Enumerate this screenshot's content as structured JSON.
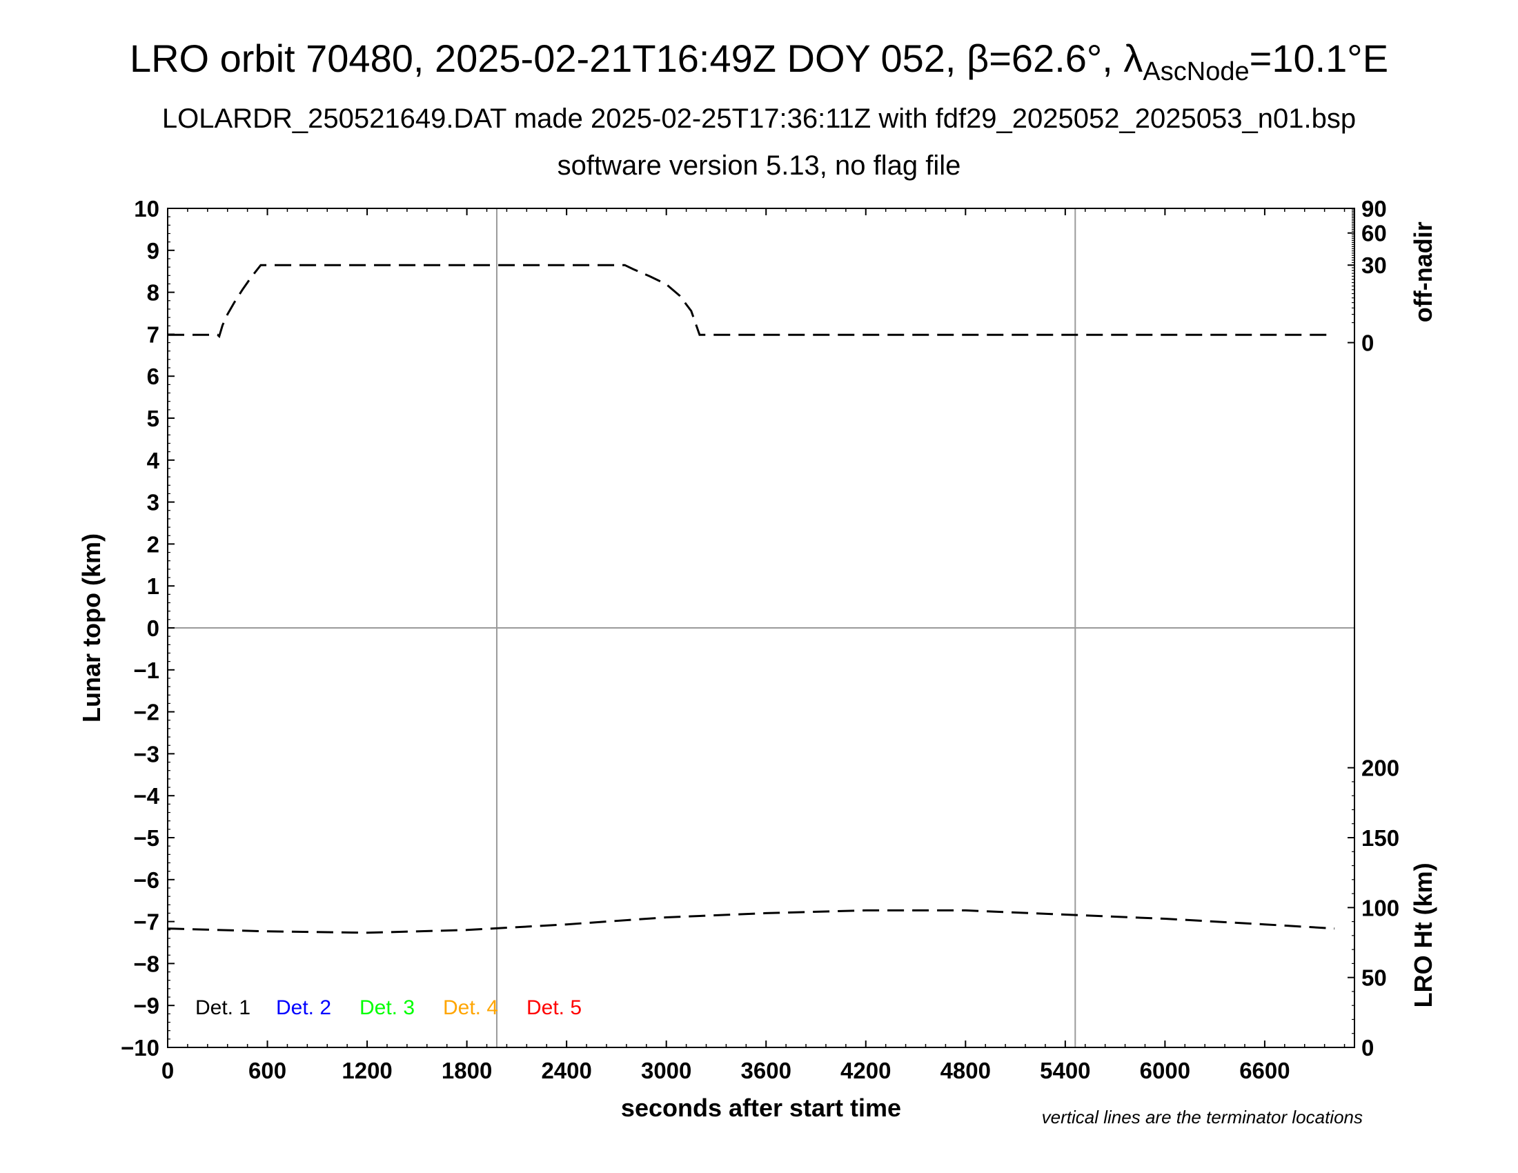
{
  "title": {
    "main": "LRO orbit 70480, 2025-02-21T16:49Z DOY 052, β=62.6°, λ",
    "sub": "AscNode",
    "tail": "=10.1°E"
  },
  "subtitle1": "LOLARDR_250521649.DAT made 2025-02-25T17:36:11Z with fdf29_2025052_2025053_n01.bsp",
  "subtitle2": "software version 5.13, no flag file",
  "note": "vertical lines are the terminator locations",
  "chart_data": {
    "type": "line",
    "xlabel": "seconds after start time",
    "ylabel_left": "Lunar topo (km)",
    "ylabel_right_top": "off-nadir",
    "ylabel_right_bottom": "LRO Ht (km)",
    "xlim": [
      0,
      7140
    ],
    "ylim_left": [
      -10,
      10
    ],
    "x_ticks": [
      "0",
      "600",
      "1200",
      "1800",
      "2400",
      "3000",
      "3600",
      "4200",
      "4800",
      "5400",
      "6000",
      "6600"
    ],
    "x_tick_values": [
      0,
      600,
      1200,
      1800,
      2400,
      3000,
      3600,
      4200,
      4800,
      5400,
      6000,
      6600
    ],
    "y_ticks_left": [
      "−10",
      "−9",
      "−8",
      "−7",
      "−6",
      "−5",
      "−4",
      "−3",
      "−2",
      "−1",
      "0",
      "1",
      "2",
      "3",
      "4",
      "5",
      "6",
      "7",
      "8",
      "9",
      "10"
    ],
    "y_tick_values_left": [
      -10,
      -9,
      -8,
      -7,
      -6,
      -5,
      -4,
      -3,
      -2,
      -1,
      0,
      1,
      2,
      3,
      4,
      5,
      6,
      7,
      8,
      9,
      10
    ],
    "right_top_axis": {
      "label": "off-nadir",
      "ticks": [
        "0",
        "30",
        "60",
        "90"
      ],
      "tick_values": [
        0,
        30,
        60,
        90
      ],
      "range": [
        0,
        90
      ],
      "scale": "sqrt"
    },
    "right_bottom_axis": {
      "label": "LRO Ht (km)",
      "ticks": [
        "0",
        "50",
        "100",
        "150",
        "200"
      ],
      "tick_values": [
        0,
        50,
        100,
        150,
        200
      ],
      "range": [
        0,
        200
      ]
    },
    "terminator_lines_x": [
      1980,
      5460
    ],
    "zero_line_y": 0,
    "grid": false,
    "series": [
      {
        "axis": "right_top",
        "style": "dashed",
        "color": "#000000",
        "points": [
          [
            0,
            0.3
          ],
          [
            150,
            0.3
          ],
          [
            300,
            0.3
          ],
          [
            310,
            0.2
          ],
          [
            330,
            1.5
          ],
          [
            360,
            4
          ],
          [
            400,
            8
          ],
          [
            450,
            14
          ],
          [
            500,
            21
          ],
          [
            560,
            30
          ],
          [
            2750,
            30
          ],
          [
            2800,
            27
          ],
          [
            2900,
            22
          ],
          [
            3000,
            17
          ],
          [
            3080,
            11
          ],
          [
            3150,
            5
          ],
          [
            3200,
            0.3
          ],
          [
            7020,
            0.3
          ]
        ]
      },
      {
        "axis": "right_bottom",
        "style": "dashed",
        "color": "#000000",
        "points": [
          [
            0,
            85
          ],
          [
            600,
            83
          ],
          [
            1200,
            82
          ],
          [
            1800,
            84
          ],
          [
            2400,
            88
          ],
          [
            3000,
            93
          ],
          [
            3600,
            96
          ],
          [
            4200,
            98
          ],
          [
            4800,
            98
          ],
          [
            5400,
            95
          ],
          [
            6000,
            92
          ],
          [
            6600,
            88
          ],
          [
            7020,
            85
          ]
        ]
      }
    ],
    "legend": {
      "placement": "bottom-left",
      "entries": [
        {
          "label": "Det. 1",
          "color": "#000000"
        },
        {
          "label": "Det. 2",
          "color": "#0000ff"
        },
        {
          "label": "Det. 3",
          "color": "#00ff00"
        },
        {
          "label": "Det. 4",
          "color": "#ffa500"
        },
        {
          "label": "Det. 5",
          "color": "#ff0000"
        }
      ]
    }
  }
}
